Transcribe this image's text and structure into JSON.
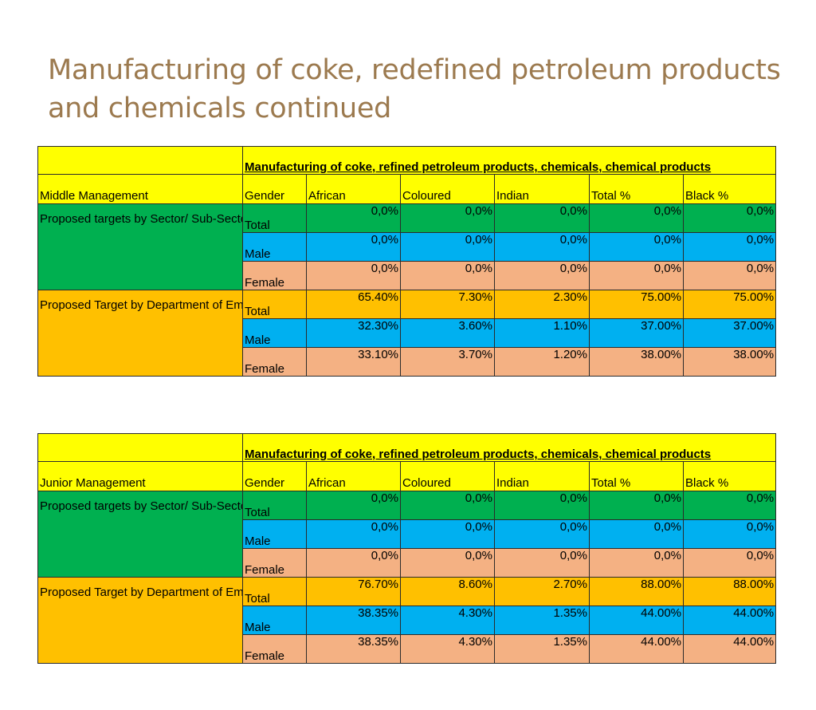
{
  "page": {
    "title": "Manufacturing of coke, redefined petroleum products and chemicals continued"
  },
  "tables": [
    {
      "heading": "Manufacturing of coke, refined petroleum products, chemicals, chemical products",
      "columns": [
        "Middle Management",
        "Gender",
        "African",
        "Coloured",
        "Indian",
        "Total %",
        "Black %"
      ],
      "groups": [
        {
          "label": "Proposed targets by Sector/ Sub-Sector",
          "rows": [
            {
              "gender": "Total",
              "values": [
                "0,0%",
                "0,0%",
                "0,0%",
                "0,0%",
                "0,0%"
              ]
            },
            {
              "gender": "Male",
              "values": [
                "0,0%",
                "0,0%",
                "0,0%",
                "0,0%",
                "0,0%"
              ]
            },
            {
              "gender": "Female",
              "values": [
                "0,0%",
                "0,0%",
                "0,0%",
                "0,0%",
                "0,0%"
              ]
            }
          ]
        },
        {
          "label": "Proposed Target by Department of Employment and Labour",
          "rows": [
            {
              "gender": "Total",
              "values": [
                "65.40%",
                "7.30%",
                "2.30%",
                "75.00%",
                "75.00%"
              ]
            },
            {
              "gender": "Male",
              "values": [
                "32.30%",
                "3.60%",
                "1.10%",
                "37.00%",
                "37.00%"
              ]
            },
            {
              "gender": "Female",
              "values": [
                "33.10%",
                "3.70%",
                "1.20%",
                "38.00%",
                "38.00%"
              ]
            }
          ]
        }
      ]
    },
    {
      "heading": "Manufacturing of coke, refined petroleum products, chemicals, chemical products",
      "columns": [
        "Junior Management",
        "Gender",
        "African",
        "Coloured",
        "Indian",
        "Total %",
        "Black %"
      ],
      "groups": [
        {
          "label": "Proposed targets by Sector/ Sub-Sector",
          "rows": [
            {
              "gender": "Total",
              "values": [
                "0,0%",
                "0,0%",
                "0,0%",
                "0,0%",
                "0,0%"
              ]
            },
            {
              "gender": "Male",
              "values": [
                "0,0%",
                "0,0%",
                "0,0%",
                "0,0%",
                "0,0%"
              ]
            },
            {
              "gender": "Female",
              "values": [
                "0,0%",
                "0,0%",
                "0,0%",
                "0,0%",
                "0,0%"
              ]
            }
          ]
        },
        {
          "label": "Proposed Target by Department of Employment and Labour",
          "rows": [
            {
              "gender": "Total",
              "values": [
                "76.70%",
                "8.60%",
                "2.70%",
                "88.00%",
                "88.00%"
              ]
            },
            {
              "gender": "Male",
              "values": [
                "38.35%",
                "4.30%",
                "1.35%",
                "44.00%",
                "44.00%"
              ]
            },
            {
              "gender": "Female",
              "values": [
                "38.35%",
                "4.30%",
                "1.35%",
                "44.00%",
                "44.00%"
              ]
            }
          ]
        }
      ]
    }
  ],
  "colors": {
    "title_text": "#9c7a4f",
    "header_yellow": "#ffff00",
    "sector_green": "#00b050",
    "male_blue": "#00b0f0",
    "female_salmon": "#f4b183",
    "department_orange": "#ffc000"
  }
}
